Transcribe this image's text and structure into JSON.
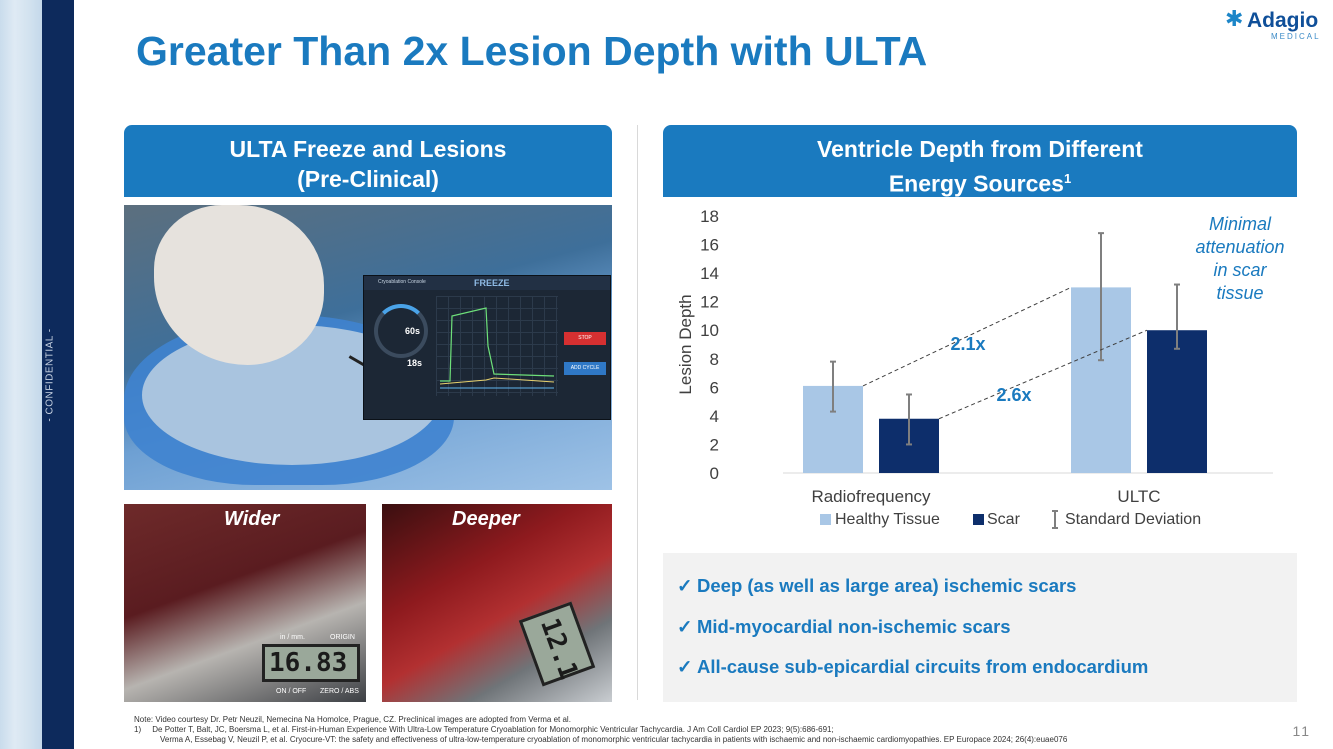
{
  "sidebar": {
    "confidential": "- CONFIDENTIAL -"
  },
  "header": {
    "title": "Greater Than 2x Lesion Depth with ULTA"
  },
  "logo": {
    "name": "Adagio",
    "tagline": "MEDICAL",
    "icon": "snowflake-icon"
  },
  "left_panel": {
    "heading_line1": "ULTA Freeze and Lesions",
    "heading_line2": "(Pre-Clinical)",
    "monitor": {
      "app_name": "Cryoablation Console",
      "mode": "FREEZE",
      "timer_total": "60s",
      "timer_elapsed": "18s",
      "stop_label": "STOP",
      "add_cycle_label": "ADD CYCLE"
    },
    "photo_wide_label": "Wider",
    "photo_deep_label": "Deeper",
    "wide_reading": "16.83",
    "deep_reading": "12.1",
    "caliper_units": "in / mm.",
    "caliper_origin": "ORIGIN",
    "caliper_onoff": "ON / OFF",
    "caliper_zero": "ZERO / ABS"
  },
  "right_panel": {
    "heading_line1": "Ventricle Depth from Different",
    "heading_line2": "Energy Sources",
    "heading_sup": "1"
  },
  "chart_data": {
    "type": "bar",
    "categories": [
      "Radiofrequency",
      "ULTC"
    ],
    "series": [
      {
        "name": "Healthy Tissue",
        "color": "#a9c7e6",
        "values": [
          6.1,
          13.0
        ],
        "err_low": [
          4.3,
          7.9
        ],
        "err_high": [
          7.8,
          16.8
        ]
      },
      {
        "name": "Scar",
        "color": "#0d2e6b",
        "values": [
          3.8,
          10.0
        ],
        "err_low": [
          2.0,
          8.7
        ],
        "err_high": [
          5.5,
          13.2
        ]
      }
    ],
    "error_label": "Standard Deviation",
    "ylabel": "Lesion Depth",
    "ylim": [
      0,
      18
    ],
    "yticks": [
      0,
      2,
      4,
      6,
      8,
      10,
      12,
      14,
      16,
      18
    ],
    "grid": false,
    "legend": "bottom",
    "annotations": {
      "healthy_ratio": "2.1x",
      "scar_ratio": "2.6x",
      "callout_lines": [
        "Minimal",
        "attenuation",
        "in scar",
        "tissue"
      ]
    }
  },
  "bullets": [
    "Deep (as well as large area) ischemic scars",
    "Mid-myocardial non-ischemic scars",
    "All-cause sub-epicardial circuits from endocardium"
  ],
  "footnotes": {
    "note": "Note: Video courtesy Dr. Petr Neuzil, Nemecina Na Homolce, Prague, CZ. Preclinical images are adopted from Verma et al.",
    "ref1_num": "1)",
    "ref1a": "De Potter T, Balt, JC, Boersma L, et al. First-in-Human Experience With Ultra-Low Temperature Cryoablation for Monomorphic Ventricular Tachycardia. J Am Coll Cardiol EP 2023; 9(5):686-691;",
    "ref1b": "Verma A, Essebag V, Neuzil P, et al. Cryocure-VT: the safety and effectiveness of ultra-low-temperature cryoablation of monomorphic ventricular tachycardia in patients with ischaemic and non-ischaemic cardiomyopathies. EP Europace 2024; 26(4):euae076"
  },
  "page_number": "11"
}
